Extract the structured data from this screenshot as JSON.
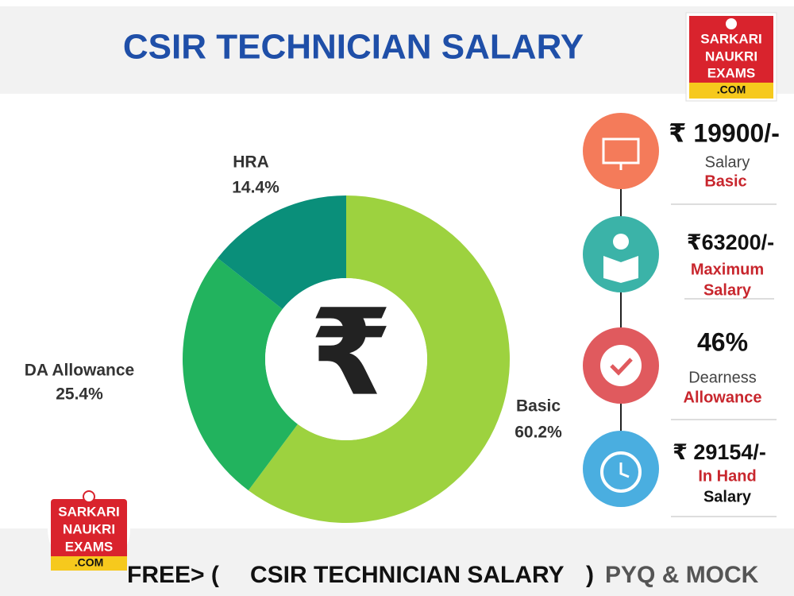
{
  "header": {
    "title": "CSIR TECHNICIAN SALARY"
  },
  "logo": {
    "lines": [
      "SARKARI",
      "NAUKRI",
      "EXAMS",
      ".COM"
    ]
  },
  "chart_data": {
    "type": "donut",
    "center_symbol": "₹",
    "categories": [
      "Basic",
      "DA Allowance",
      "HRA"
    ],
    "values": [
      60.2,
      25.4,
      14.4
    ],
    "value_labels": [
      "60.2%",
      "25.4%",
      "14.4%"
    ],
    "colors": [
      "#9dd23f",
      "#22b35e",
      "#0a8f7a"
    ]
  },
  "stats": [
    {
      "value": "₹ 19900/-",
      "lines": [
        "Salary",
        "Basic"
      ]
    },
    {
      "value": "₹63200/-",
      "lines": [
        "Maximum",
        "Salary"
      ]
    },
    {
      "value": "46%",
      "lines": [
        "Dearness",
        "Allowance"
      ]
    },
    {
      "value": "₹ 29154/-",
      "lines": [
        "In Hand",
        "Salary"
      ]
    }
  ],
  "footer": {
    "parts": [
      "FREE> (",
      "CSIR TECHNICIAN SALARY",
      ")",
      "PYQ & MOCK"
    ]
  }
}
